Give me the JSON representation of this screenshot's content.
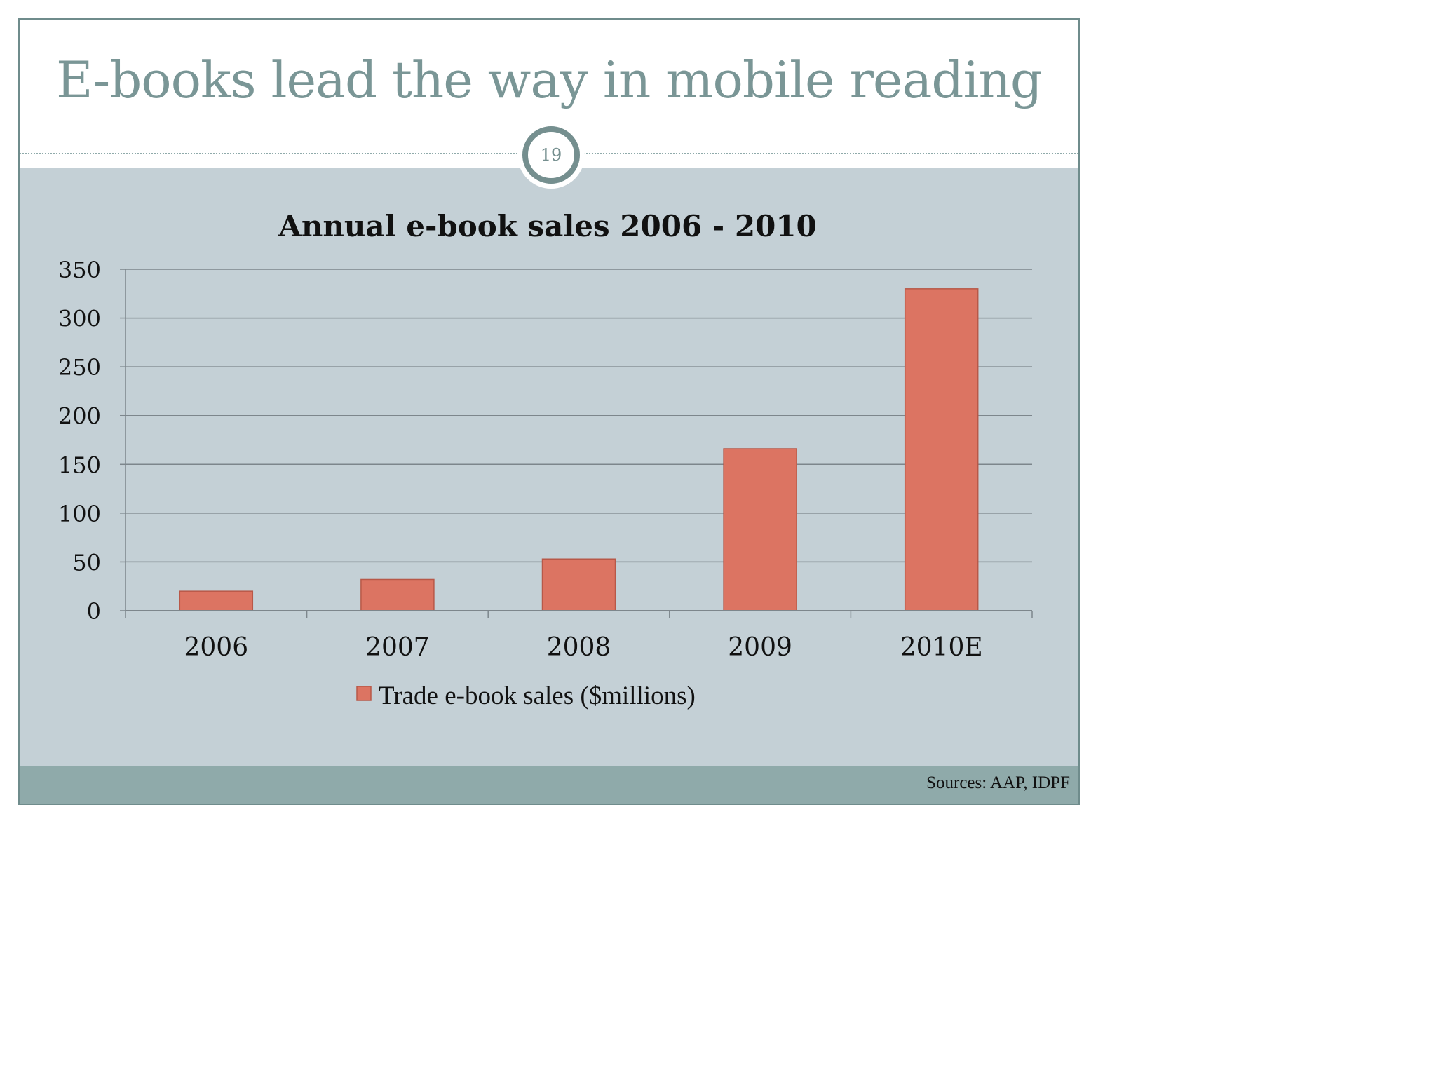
{
  "slide": {
    "title": "E-books lead the way in mobile reading",
    "page_number": "19",
    "source": "Sources: AAP, IDPF"
  },
  "colors": {
    "title": "#7a9696",
    "panel": "#c4d0d6",
    "footer": "#8faaaa",
    "bar": "#dc7462",
    "bar_border": "#b85848"
  },
  "chart_data": {
    "type": "bar",
    "title": "Annual e-book sales 2006 - 2010",
    "categories": [
      "2006",
      "2007",
      "2008",
      "2009",
      "2010E"
    ],
    "series": [
      {
        "name": "Trade e-book sales ($millions)",
        "values": [
          20,
          32,
          53,
          166,
          330
        ]
      }
    ],
    "ylim": [
      0,
      350
    ],
    "yticks": [
      "0",
      "50",
      "100",
      "150",
      "200",
      "250",
      "300",
      "350"
    ],
    "grid": true,
    "legend_position": "bottom"
  }
}
